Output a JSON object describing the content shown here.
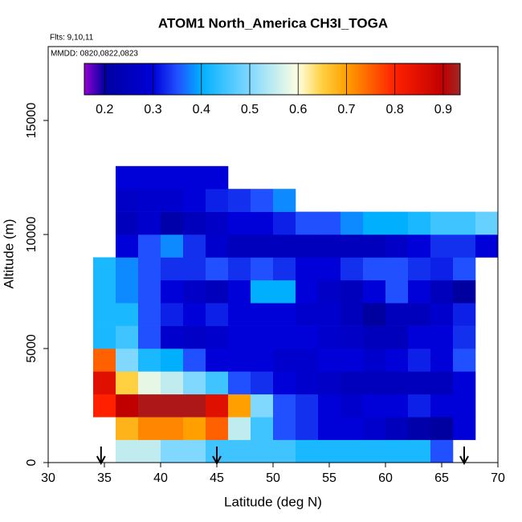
{
  "chart_data": {
    "type": "heatmap",
    "title": "ATOM1 North_America CH3I_TOGA",
    "annotations": [
      "Flts: 9,10,11",
      "MMDD: 0820,0822,0823"
    ],
    "x_label": "Latitude (deg N)",
    "y_label": "Altitude (m)",
    "xlim": [
      30,
      70
    ],
    "ylim": [
      0,
      18240
    ],
    "xticks": [
      30,
      35,
      40,
      45,
      50,
      55,
      60,
      65,
      70
    ],
    "yticks": [
      0,
      5000,
      10000,
      15000
    ],
    "lat_bins": [
      34,
      36,
      38,
      40,
      42,
      44,
      46,
      48,
      50,
      52,
      54,
      56,
      58,
      60,
      62,
      64,
      66,
      68,
      70
    ],
    "alt_bins": [
      0,
      1000,
      2000,
      3000,
      4000,
      5000,
      6000,
      7000,
      8000,
      9000,
      10000,
      11000,
      12000,
      13000
    ],
    "values": [
      [
        null,
        0.55,
        0.55,
        0.5,
        0.5,
        0.45,
        0.45,
        0.45,
        0.45,
        0.42,
        0.42,
        0.42,
        0.42,
        0.42,
        0.42,
        0.35,
        null,
        null
      ],
      [
        null,
        0.68,
        0.72,
        0.72,
        0.7,
        0.75,
        0.55,
        0.45,
        0.35,
        0.33,
        0.3,
        0.3,
        0.28,
        0.25,
        0.22,
        0.2,
        0.3,
        null
      ],
      [
        0.8,
        0.9,
        0.92,
        0.92,
        0.92,
        0.85,
        0.7,
        0.5,
        0.35,
        0.33,
        0.3,
        0.28,
        0.3,
        0.3,
        0.32,
        0.3,
        0.3,
        null
      ],
      [
        0.85,
        0.65,
        0.58,
        0.55,
        0.5,
        0.45,
        0.35,
        0.33,
        0.3,
        0.28,
        0.27,
        0.25,
        0.25,
        0.25,
        0.25,
        0.25,
        0.3,
        null
      ],
      [
        0.75,
        0.5,
        0.42,
        0.4,
        0.35,
        0.3,
        0.3,
        0.3,
        0.28,
        0.28,
        0.3,
        0.3,
        0.28,
        0.3,
        0.32,
        0.3,
        0.35,
        null
      ],
      [
        0.42,
        0.45,
        0.35,
        0.28,
        0.27,
        0.28,
        0.3,
        0.3,
        0.3,
        0.3,
        0.28,
        0.27,
        0.25,
        0.25,
        0.3,
        0.3,
        0.33,
        null
      ],
      [
        0.42,
        0.42,
        0.35,
        0.32,
        0.3,
        0.32,
        0.3,
        0.3,
        0.3,
        0.28,
        0.28,
        0.25,
        0.2,
        0.25,
        0.25,
        0.28,
        0.32,
        null
      ],
      [
        0.42,
        0.38,
        0.35,
        0.3,
        0.27,
        0.25,
        0.3,
        0.4,
        0.4,
        0.3,
        0.27,
        0.25,
        0.3,
        0.35,
        0.3,
        0.25,
        0.2,
        null
      ],
      [
        0.42,
        0.38,
        0.35,
        0.33,
        0.33,
        0.35,
        0.33,
        0.35,
        0.33,
        0.3,
        0.3,
        0.33,
        0.35,
        0.35,
        0.33,
        0.32,
        0.35,
        null
      ],
      [
        null,
        0.3,
        0.35,
        0.38,
        0.33,
        0.28,
        0.25,
        0.25,
        0.25,
        0.25,
        0.25,
        0.25,
        0.25,
        0.27,
        0.3,
        0.33,
        0.33,
        0.3
      ],
      [
        null,
        0.25,
        0.28,
        0.22,
        0.25,
        0.27,
        0.3,
        0.3,
        0.32,
        0.35,
        0.35,
        0.38,
        0.4,
        0.4,
        0.42,
        0.45,
        0.45,
        0.48
      ],
      [
        null,
        0.27,
        0.28,
        0.28,
        0.3,
        0.32,
        0.33,
        0.35,
        0.38,
        null,
        null,
        null,
        null,
        null,
        null,
        null,
        null,
        null
      ],
      [
        null,
        0.3,
        0.3,
        0.3,
        0.3,
        0.3,
        null,
        null,
        null,
        null,
        null,
        null,
        null,
        null,
        null,
        null,
        null,
        null
      ]
    ],
    "color_range": [
      0.158,
      0.935
    ],
    "color_ticks": [
      0.2,
      0.3,
      0.4,
      0.5,
      0.6,
      0.7,
      0.8,
      0.9
    ],
    "colorscale": [
      [
        0.158,
        "#9400d3"
      ],
      [
        0.2,
        "#0000a0"
      ],
      [
        0.3,
        "#0000d8"
      ],
      [
        0.35,
        "#2050ff"
      ],
      [
        0.4,
        "#00b0ff"
      ],
      [
        0.5,
        "#80d8ff"
      ],
      [
        0.6,
        "#ffffe0"
      ],
      [
        0.65,
        "#ffd040"
      ],
      [
        0.7,
        "#ffa000"
      ],
      [
        0.8,
        "#ff2000"
      ],
      [
        0.9,
        "#c00000"
      ],
      [
        0.935,
        "#a02828"
      ]
    ],
    "arrows": [
      34.7,
      45,
      67
    ]
  }
}
